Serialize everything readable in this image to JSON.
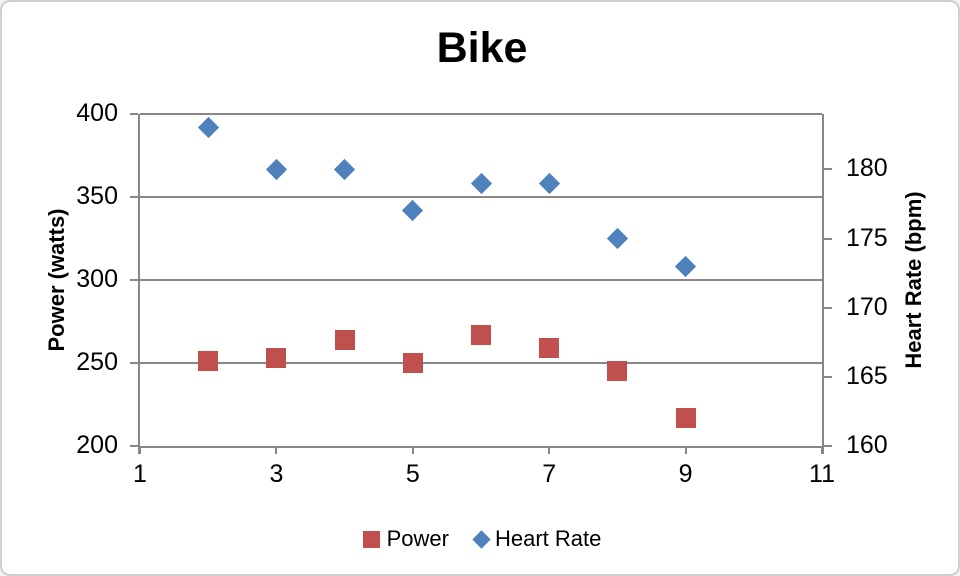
{
  "window": {
    "background": "#ffffff",
    "frame_border_color": "#cfcfcf"
  },
  "chart_data": {
    "type": "scatter",
    "title": "Bike",
    "x": [
      2,
      3,
      4,
      5,
      6,
      7,
      8,
      9
    ],
    "series": [
      {
        "name": "Power",
        "marker": "square",
        "color": "#c0504d",
        "axis": "left",
        "values": [
          251,
          253,
          264,
          250,
          267,
          259,
          245,
          217
        ]
      },
      {
        "name": "Heart Rate",
        "marker": "diamond",
        "color": "#4f81bd",
        "axis": "right",
        "values": [
          183,
          180,
          180,
          177,
          179,
          179,
          175,
          173
        ]
      }
    ],
    "x_axis": {
      "min": 1,
      "max": 11,
      "ticks": [
        1,
        3,
        5,
        7,
        9,
        11
      ]
    },
    "left_axis": {
      "label": "Power (watts)",
      "min": 200,
      "max": 400,
      "ticks": [
        200,
        250,
        300,
        350,
        400
      ]
    },
    "right_axis": {
      "label": "Heart Rate (bpm)",
      "min": 160,
      "max": 184,
      "ticks": [
        160,
        165,
        170,
        175,
        180
      ]
    },
    "legend": {
      "position": "bottom",
      "entries": [
        "Power",
        "Heart Rate"
      ]
    },
    "grid": true,
    "gridline_color": "#878787",
    "axis_color": "#878787",
    "text_color": "#000000"
  }
}
